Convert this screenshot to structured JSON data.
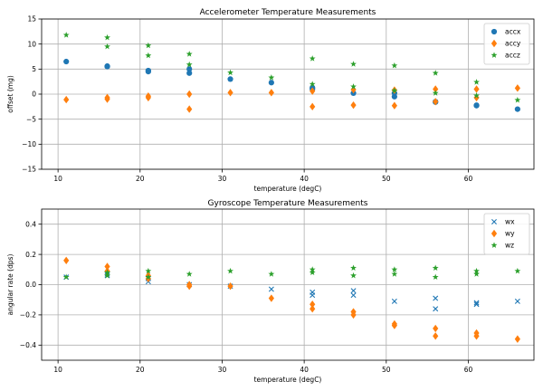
{
  "chart_data": [
    {
      "type": "scatter",
      "title": "Accelerometer Temperature Measurements",
      "xlabel": "temperature (degC)",
      "ylabel": "offset (mg)",
      "xlim": [
        8,
        68
      ],
      "ylim": [
        -15,
        15
      ],
      "xticks": [
        10,
        20,
        30,
        40,
        50,
        60
      ],
      "yticks": [
        -15,
        -10,
        -5,
        0,
        5,
        10,
        15
      ],
      "grid": true,
      "legend_position": "top-right",
      "series": [
        {
          "name": "accx",
          "marker": "circle",
          "color": "#1f77b4",
          "points": [
            [
              11,
              6.5
            ],
            [
              16,
              5.5
            ],
            [
              16,
              5.6
            ],
            [
              21,
              4.7
            ],
            [
              21,
              4.5
            ],
            [
              26,
              4.2
            ],
            [
              26,
              5.0
            ],
            [
              31,
              3.0
            ],
            [
              36,
              2.3
            ],
            [
              41,
              1.3
            ],
            [
              41,
              1.0
            ],
            [
              46,
              0.2
            ],
            [
              51,
              -0.5
            ],
            [
              51,
              0.2
            ],
            [
              56,
              -1.5
            ],
            [
              56,
              -1.6
            ],
            [
              61,
              -2.3
            ],
            [
              61,
              -2.2
            ],
            [
              66,
              -3.0
            ]
          ]
        },
        {
          "name": "accy",
          "marker": "diamond",
          "color": "#ff7f0e",
          "points": [
            [
              11,
              -1.1
            ],
            [
              16,
              -1.0
            ],
            [
              16,
              -0.7
            ],
            [
              21,
              -0.4
            ],
            [
              21,
              -0.7
            ],
            [
              26,
              0.0
            ],
            [
              26,
              -3.0
            ],
            [
              31,
              0.3
            ],
            [
              36,
              0.3
            ],
            [
              41,
              0.6
            ],
            [
              41,
              -2.5
            ],
            [
              46,
              0.9
            ],
            [
              46,
              -2.2
            ],
            [
              51,
              0.8
            ],
            [
              51,
              -2.3
            ],
            [
              56,
              1.0
            ],
            [
              56,
              -1.5
            ],
            [
              61,
              1.0
            ],
            [
              61,
              -0.7
            ],
            [
              66,
              1.2
            ]
          ]
        },
        {
          "name": "accz",
          "marker": "star",
          "color": "#2ca02c",
          "points": [
            [
              11,
              11.8
            ],
            [
              16,
              11.3
            ],
            [
              16,
              9.5
            ],
            [
              21,
              9.7
            ],
            [
              21,
              7.7
            ],
            [
              26,
              8.0
            ],
            [
              26,
              5.9
            ],
            [
              31,
              4.3
            ],
            [
              36,
              3.3
            ],
            [
              41,
              7.1
            ],
            [
              41,
              2.0
            ],
            [
              46,
              6.0
            ],
            [
              46,
              1.5
            ],
            [
              51,
              5.7
            ],
            [
              51,
              0.7
            ],
            [
              56,
              4.2
            ],
            [
              56,
              0.2
            ],
            [
              61,
              2.4
            ],
            [
              61,
              -0.3
            ],
            [
              66,
              -1.2
            ]
          ]
        }
      ]
    },
    {
      "type": "scatter",
      "title": "Gyroscope Temperature Measurements",
      "xlabel": "temperature (degC)",
      "ylabel": "angular rate (dps)",
      "xlim": [
        8,
        68
      ],
      "ylim": [
        -0.5,
        0.5
      ],
      "xticks": [
        10,
        20,
        30,
        40,
        50,
        60
      ],
      "yticks": [
        -0.4,
        -0.2,
        0.0,
        0.2,
        0.4
      ],
      "ytick_labels": [
        "−0.4",
        "−0.2",
        "0.0",
        "0.2",
        "0.4"
      ],
      "grid": true,
      "legend_position": "top-right",
      "series": [
        {
          "name": "wx",
          "marker": "x",
          "color": "#1f77b4",
          "points": [
            [
              11,
              0.05
            ],
            [
              16,
              0.07
            ],
            [
              16,
              0.06
            ],
            [
              21,
              0.02
            ],
            [
              21,
              0.04
            ],
            [
              26,
              0.0
            ],
            [
              31,
              -0.01
            ],
            [
              36,
              -0.03
            ],
            [
              41,
              -0.05
            ],
            [
              41,
              -0.07
            ],
            [
              46,
              -0.04
            ],
            [
              46,
              -0.07
            ],
            [
              51,
              -0.11
            ],
            [
              56,
              -0.09
            ],
            [
              56,
              -0.16
            ],
            [
              61,
              -0.12
            ],
            [
              61,
              -0.13
            ],
            [
              66,
              -0.11
            ]
          ]
        },
        {
          "name": "wy",
          "marker": "diamond",
          "color": "#ff7f0e",
          "points": [
            [
              11,
              0.16
            ],
            [
              16,
              0.12
            ],
            [
              16,
              0.09
            ],
            [
              21,
              0.06
            ],
            [
              21,
              0.04
            ],
            [
              26,
              0.0
            ],
            [
              26,
              -0.01
            ],
            [
              31,
              -0.01
            ],
            [
              36,
              -0.09
            ],
            [
              41,
              -0.13
            ],
            [
              41,
              -0.16
            ],
            [
              46,
              -0.18
            ],
            [
              46,
              -0.2
            ],
            [
              51,
              -0.26
            ],
            [
              51,
              -0.27
            ],
            [
              56,
              -0.29
            ],
            [
              56,
              -0.34
            ],
            [
              61,
              -0.32
            ],
            [
              61,
              -0.34
            ],
            [
              66,
              -0.36
            ]
          ]
        },
        {
          "name": "wz",
          "marker": "star",
          "color": "#2ca02c",
          "points": [
            [
              11,
              0.05
            ],
            [
              16,
              0.08
            ],
            [
              16,
              0.06
            ],
            [
              21,
              0.09
            ],
            [
              21,
              0.05
            ],
            [
              26,
              0.07
            ],
            [
              31,
              0.09
            ],
            [
              36,
              0.07
            ],
            [
              41,
              0.1
            ],
            [
              41,
              0.08
            ],
            [
              46,
              0.11
            ],
            [
              46,
              0.06
            ],
            [
              51,
              0.1
            ],
            [
              51,
              0.07
            ],
            [
              56,
              0.11
            ],
            [
              56,
              0.05
            ],
            [
              61,
              0.09
            ],
            [
              61,
              0.07
            ],
            [
              66,
              0.09
            ]
          ]
        }
      ]
    }
  ]
}
